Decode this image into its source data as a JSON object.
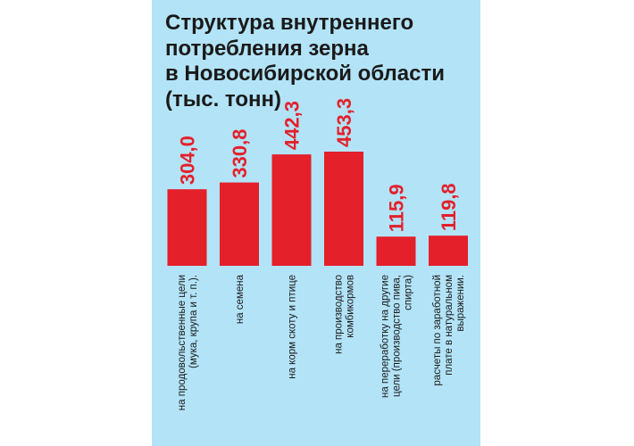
{
  "chart_data": {
    "type": "bar",
    "title_lines": [
      "Структура внутреннего",
      "потребления зерна",
      "в Новосибирской области",
      "(тыс. тонн)"
    ],
    "categories": [
      [
        "на продовольственные цели",
        "(мука, крупа и т. п.)."
      ],
      [
        "на семена"
      ],
      [
        "на корм скоту и птице"
      ],
      [
        "на производство",
        "комбикормов"
      ],
      [
        "на переработку на другие",
        "цели (производство пива,",
        "спирта)"
      ],
      [
        "расчеты по заработной",
        "плате в натуральном",
        "выражении."
      ]
    ],
    "values": [
      304.0,
      330.8,
      442.3,
      453.3,
      115.9,
      119.8
    ],
    "value_labels": [
      "304,0",
      "330,8",
      "442,3",
      "453,3",
      "115,9",
      "119,8"
    ],
    "colors": {
      "bar": "#e4202b",
      "label": "#e4202b",
      "background": "#b3e3f7"
    }
  }
}
